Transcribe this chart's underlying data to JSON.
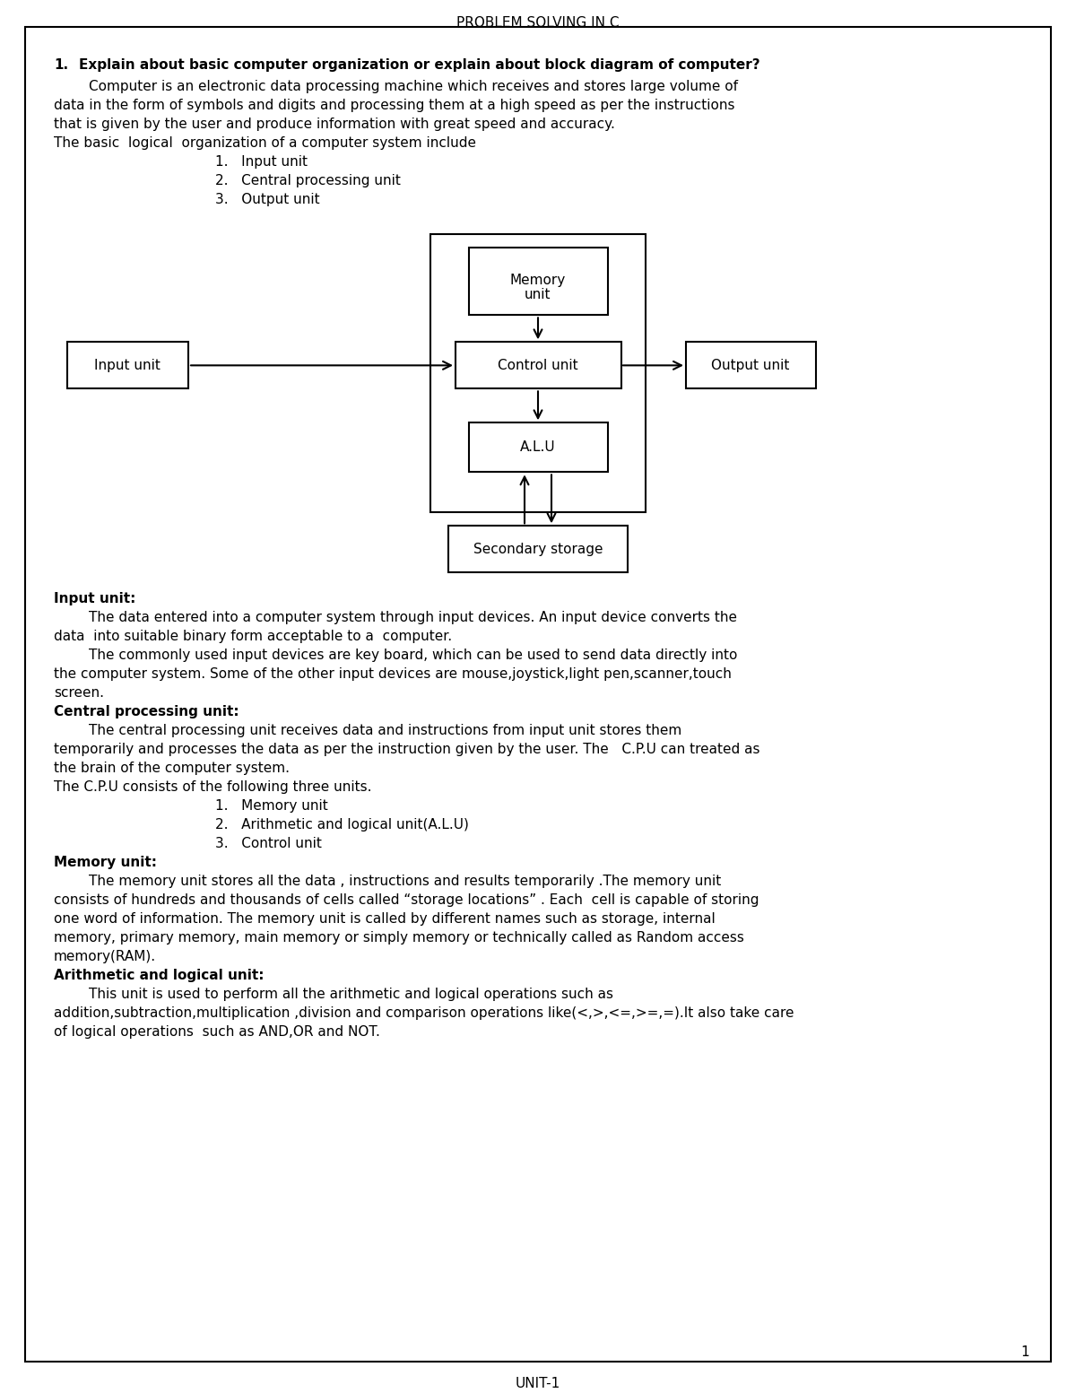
{
  "page_title": "PROBLEM SOLVING IN C",
  "footer": "UNIT-1",
  "page_number": "1",
  "bg_color": "#ffffff",
  "question_bold": "Explain about basic computer organization or explain about block diagram of computer?",
  "question_number": "1.",
  "para1_lines": [
    "        Computer is an electronic data processing machine which receives and stores large volume of",
    "data in the form of symbols and digits and processing them at a high speed as per the instructions",
    "that is given by the user and produce information with great speed and accuracy."
  ],
  "para2": "The basic  logical  organization of a computer system include",
  "list1": [
    "1.   Input unit",
    "2.   Central processing unit",
    "3.   Output unit"
  ],
  "section_input_title": "Input unit:",
  "input_p1_lines": [
    "        The data entered into a computer system through input devices. An input device converts the",
    "data  into suitable binary form acceptable to a  computer."
  ],
  "input_p2_lines": [
    "        The commonly used input devices are key board, which can be used to send data directly into",
    "the computer system. Some of the other input devices are mouse,joystick,light pen,scanner,touch",
    "screen."
  ],
  "section_cpu_title": "Central processing unit:",
  "cpu_p1_lines": [
    "        The central processing unit receives data and instructions from input unit stores them",
    "temporarily and processes the data as per the instruction given by the user. The   C.P.U can treated as",
    "the brain of the computer system."
  ],
  "cpu_p2": "The C.P.U consists of the following three units.",
  "list2": [
    "1.   Memory unit",
    "2.   Arithmetic and logical unit(A.L.U)",
    "3.   Control unit"
  ],
  "section_mem_title": "Memory unit:",
  "mem_p1_lines": [
    "        The memory unit stores all the data , instructions and results temporarily .The memory unit",
    "consists of hundreds and thousands of cells called “storage locations” . Each  cell is capable of storing",
    "one word of information. The memory unit is called by different names such as storage, internal",
    "memory, primary memory, main memory or simply memory or technically called as Random access",
    "memory(RAM)."
  ],
  "section_alu_title": "Arithmetic and logical unit:",
  "alu_p1_lines": [
    "        This unit is used to perform all the arithmetic and logical operations such as",
    "addition,subtraction,multiplication ,division and comparison operations like(<,>,<=,>=,=).It also take care",
    "of logical operations  such as AND,OR and NOT."
  ]
}
